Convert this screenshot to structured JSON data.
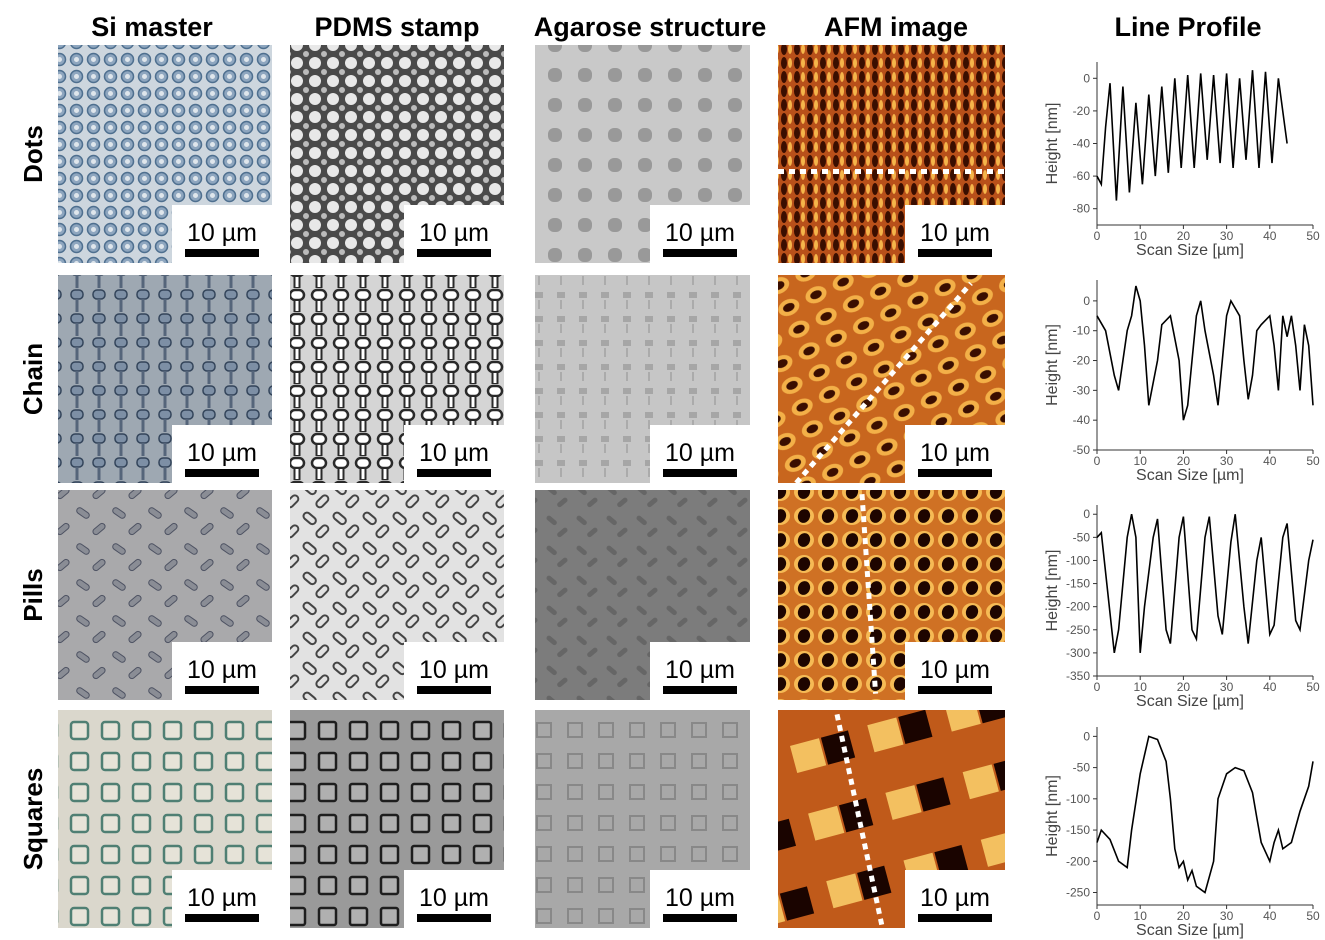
{
  "column_headers": [
    "Si master",
    "PDMS stamp",
    "Agarose structure",
    "AFM image",
    "Line Profile"
  ],
  "rows": [
    {
      "label": "Dots",
      "scale_bars": [
        "10 µm",
        "10 µm",
        "10 µm",
        "10 µm"
      ]
    },
    {
      "label": "Chain",
      "scale_bars": [
        "10 µm",
        "10 µm",
        "10 µm",
        "10 µm"
      ]
    },
    {
      "label": "Pills",
      "scale_bars": [
        "10 µm",
        "10 µm",
        "10 µm",
        "10 µm"
      ]
    },
    {
      "label": "Squares",
      "scale_bars": [
        "10 µm",
        "10 µm",
        "10 µm",
        "10 µm"
      ]
    }
  ],
  "chart_data": [
    {
      "type": "line",
      "x_label": "Scan Size [µm]",
      "y_label": "Height [nm]",
      "color": "#000000",
      "x": [
        0,
        1,
        2,
        3,
        4.5,
        6,
        7.5,
        9,
        10.5,
        12,
        13.5,
        15,
        16.5,
        18,
        19.5,
        21,
        22.5,
        24,
        25.5,
        27,
        28.5,
        30,
        31.5,
        33,
        34.5,
        36,
        37.5,
        39,
        40.5,
        42,
        43.5,
        44
      ],
      "values": [
        -60,
        -65,
        -30,
        -3,
        -75,
        -5,
        -70,
        -15,
        -65,
        -10,
        -60,
        -5,
        -58,
        0,
        -55,
        2,
        -55,
        3,
        -50,
        2,
        -52,
        3,
        -55,
        0,
        -50,
        5,
        -55,
        4,
        -52,
        0,
        -30,
        -40
      ],
      "xlim": [
        0,
        50
      ],
      "ylim": [
        -90,
        10
      ],
      "xticks": [
        0,
        10,
        20,
        30,
        40,
        50
      ],
      "yticks": [
        0,
        -20,
        -40,
        -60,
        -80
      ]
    },
    {
      "type": "line",
      "x_label": "Scan Size [µm]",
      "y_label": "Height [nm]",
      "color": "#000000",
      "x": [
        0,
        2,
        4,
        5,
        7,
        8,
        9,
        10,
        11,
        12,
        14,
        15,
        17,
        19,
        20,
        21,
        22,
        23,
        24,
        25,
        27,
        28,
        29,
        30,
        31,
        33,
        34,
        35,
        36,
        37,
        38,
        40,
        41,
        42,
        43,
        44,
        45,
        46,
        47,
        48,
        49,
        50
      ],
      "values": [
        -5,
        -10,
        -25,
        -30,
        -10,
        -5,
        5,
        0,
        -15,
        -35,
        -20,
        -8,
        -5,
        -20,
        -40,
        -35,
        -20,
        -5,
        0,
        -10,
        -25,
        -35,
        -20,
        -5,
        0,
        -5,
        -20,
        -33,
        -25,
        -10,
        -8,
        -5,
        -15,
        -30,
        -5,
        -12,
        -5,
        -15,
        -30,
        -8,
        -15,
        -35
      ],
      "xlim": [
        0,
        50
      ],
      "ylim": [
        -50,
        7
      ],
      "xticks": [
        0,
        10,
        20,
        30,
        40,
        50
      ],
      "yticks": [
        0,
        -10,
        -20,
        -30,
        -40,
        -50
      ]
    },
    {
      "type": "line",
      "x_label": "Scan Size [µm]",
      "y_label": "Height [nm]",
      "color": "#000000",
      "x": [
        0,
        1,
        4,
        5,
        7,
        8,
        9,
        10,
        11,
        13,
        14,
        16,
        17,
        19,
        20,
        22,
        23,
        25,
        26,
        28,
        29,
        31,
        32,
        34,
        35,
        37,
        38,
        40,
        41,
        43,
        44,
        46,
        47,
        49,
        50
      ],
      "values": [
        -50,
        -40,
        -300,
        -250,
        -50,
        0,
        -50,
        -300,
        -200,
        -50,
        -10,
        -250,
        -280,
        -50,
        -5,
        -250,
        -270,
        -50,
        -5,
        -220,
        -260,
        -60,
        0,
        -200,
        -280,
        -100,
        -50,
        -260,
        -240,
        -50,
        -20,
        -230,
        -250,
        -100,
        -55
      ],
      "xlim": [
        0,
        50
      ],
      "ylim": [
        -350,
        20
      ],
      "xticks": [
        0,
        10,
        20,
        30,
        40,
        50
      ],
      "yticks": [
        0,
        -50,
        -100,
        -150,
        -200,
        -250,
        -300,
        -350
      ]
    },
    {
      "type": "line",
      "x_label": "Scan Size [µm]",
      "y_label": "Height [nm]",
      "color": "#000000",
      "x": [
        0,
        1,
        3,
        5,
        7,
        8,
        10,
        12,
        14,
        16,
        17,
        18,
        19,
        20,
        21,
        22,
        23,
        25,
        27,
        28,
        30,
        32,
        34,
        36,
        37,
        38,
        40,
        41,
        42,
        43,
        45,
        47,
        49,
        50
      ],
      "values": [
        -170,
        -150,
        -165,
        -200,
        -210,
        -150,
        -60,
        0,
        -5,
        -40,
        -100,
        -180,
        -210,
        -200,
        -230,
        -215,
        -240,
        -250,
        -200,
        -100,
        -60,
        -50,
        -55,
        -90,
        -130,
        -170,
        -200,
        -170,
        -150,
        -180,
        -170,
        -120,
        -80,
        -40
      ],
      "xlim": [
        0,
        50
      ],
      "ylim": [
        -270,
        15
      ],
      "xticks": [
        0,
        10,
        20,
        30,
        40,
        50
      ],
      "yticks": [
        0,
        -50,
        -100,
        -150,
        -200,
        -250
      ]
    }
  ]
}
